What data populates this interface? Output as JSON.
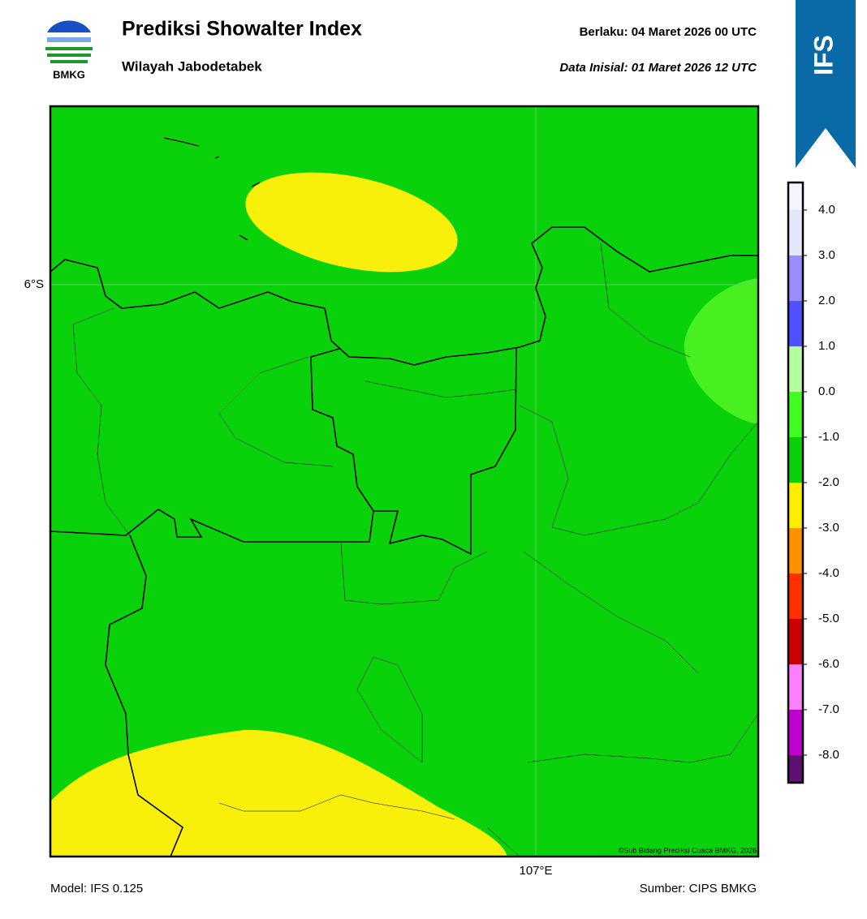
{
  "header": {
    "title": "Prediksi Showalter Index",
    "subtitle": "Wilayah Jabodetabek",
    "valid": "Berlaku:  04 Maret 2026 00 UTC",
    "initial": "Data Inisial:  01 Maret 2026 12 UTC",
    "logo_text": "BMKG",
    "badge": "IFS"
  },
  "map": {
    "lat_label": "6°S",
    "lon_label": "107°E",
    "credit": "©Sub Bidang Prediksi Cuaca BMKG, 2026"
  },
  "colorbar": {
    "ticks": [
      {
        "value": 4,
        "label": "4.0"
      },
      {
        "value": 3,
        "label": "3.0"
      },
      {
        "value": 2,
        "label": "2.0"
      },
      {
        "value": 1,
        "label": "1.0"
      },
      {
        "value": 0,
        "label": "0.0"
      },
      {
        "value": -1,
        "label": "-1.0"
      },
      {
        "value": -2,
        "label": "-2.0"
      },
      {
        "value": -3,
        "label": "-3.0"
      },
      {
        "value": -4,
        "label": "-4.0"
      },
      {
        "value": -5,
        "label": "-5.0"
      },
      {
        "value": -6,
        "label": "-6.0"
      },
      {
        "value": -7,
        "label": "-7.0"
      },
      {
        "value": -8,
        "label": "-8.0"
      }
    ],
    "colors": [
      "#f4f4ff",
      "#e6e6fa",
      "#9b8cff",
      "#5050ff",
      "#b4ffa0",
      "#40ff20",
      "#0ad20a",
      "#ffee00",
      "#ff9000",
      "#ff3000",
      "#c80000",
      "#ff80ff",
      "#c000d0",
      "#601070"
    ]
  },
  "footer": {
    "model": "Model: IFS 0.125",
    "source": "Sumber: CIPS BMKG"
  }
}
